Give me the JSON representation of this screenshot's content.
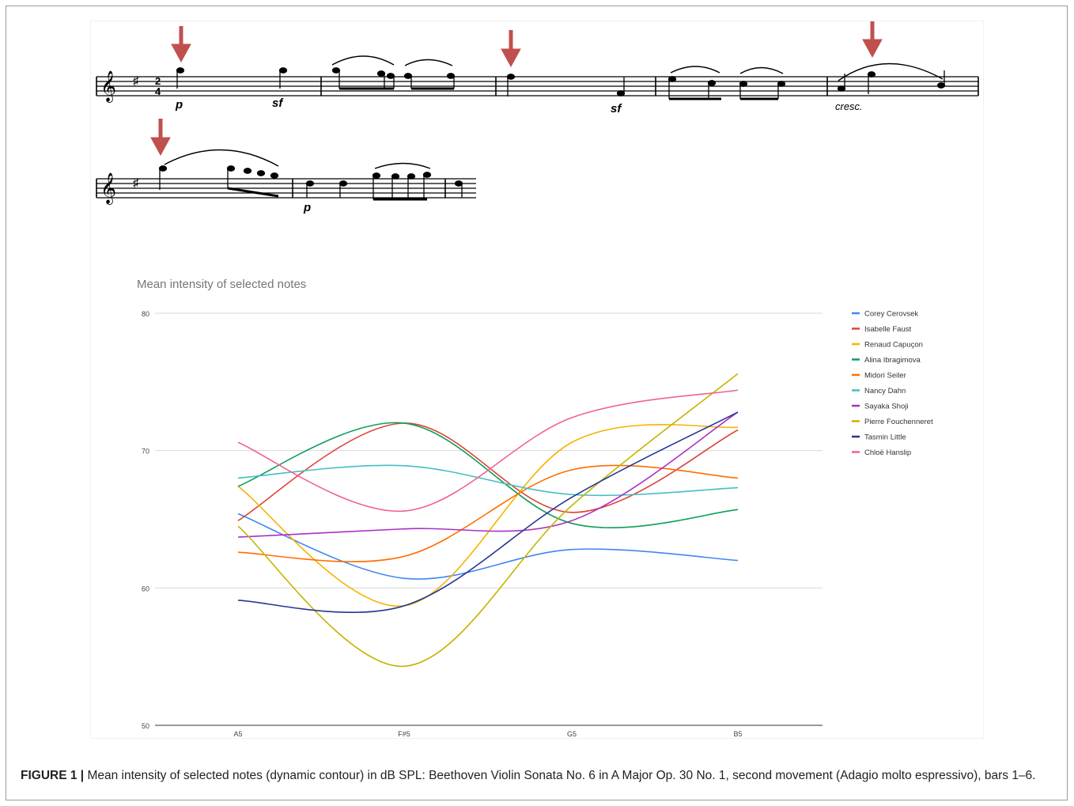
{
  "score_markings": {
    "dynamic_p": "p",
    "dynamic_sf": "sf",
    "dynamic_cresc": "cresc."
  },
  "chart_data": {
    "type": "line",
    "title": "Mean intensity of selected notes",
    "xlabel": "",
    "ylabel": "",
    "categories": [
      "A5",
      "F#5",
      "G5",
      "B5"
    ],
    "ylim": [
      50,
      80
    ],
    "yticks": [
      50,
      60,
      70,
      80
    ],
    "grid": true,
    "legend_position": "right",
    "smooth": true,
    "series": [
      {
        "name": "Corey Cerovsek",
        "color": "#4285f4",
        "values": [
          65.4,
          60.7,
          62.8,
          62.0
        ]
      },
      {
        "name": "Isabelle Faust",
        "color": "#db4437",
        "values": [
          64.9,
          72.0,
          65.5,
          71.5
        ]
      },
      {
        "name": "Renaud Capuçon",
        "color": "#f4b400",
        "values": [
          67.4,
          58.7,
          70.6,
          71.7
        ]
      },
      {
        "name": "Alina Ibragimova",
        "color": "#0f9d58",
        "values": [
          67.4,
          72.0,
          64.7,
          65.7
        ]
      },
      {
        "name": "Midori Seiler",
        "color": "#ff6d00",
        "values": [
          62.6,
          62.3,
          68.6,
          68.0
        ]
      },
      {
        "name": "Nancy Dahn",
        "color": "#46bdc6",
        "values": [
          68.0,
          68.9,
          66.8,
          67.3
        ]
      },
      {
        "name": "Sayaka Shoji",
        "color": "#ab30c4",
        "values": [
          63.7,
          64.3,
          64.9,
          72.8
        ]
      },
      {
        "name": "Pierre Fouchenneret",
        "color": "#c6b400",
        "values": [
          64.5,
          54.3,
          66.0,
          75.6
        ]
      },
      {
        "name": "Tasmin Little",
        "color": "#283593",
        "values": [
          59.1,
          58.7,
          66.6,
          72.8
        ]
      },
      {
        "name": "Chloë Hanslip",
        "color": "#f06292",
        "values": [
          70.6,
          65.6,
          72.4,
          74.4
        ]
      }
    ]
  },
  "caption": {
    "label": "FIGURE 1 |",
    "text": "Mean intensity of selected notes (dynamic contour) in dB SPL: Beethoven Violin Sonata No. 6 in A Major Op. 30 No. 1, second movement (Adagio molto espressivo), bars 1–6."
  }
}
